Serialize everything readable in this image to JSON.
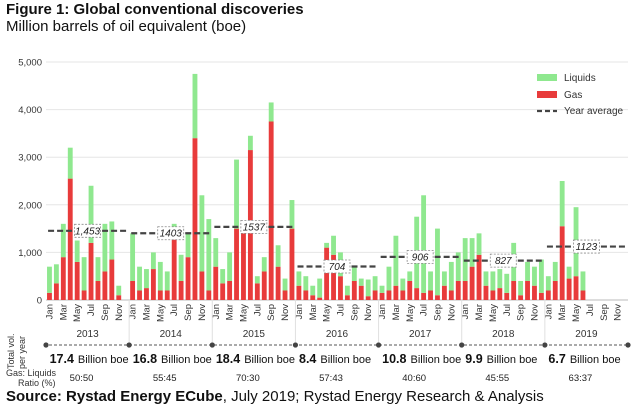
{
  "figure": {
    "title": "Figure 1: Global conventional discoveries",
    "subtitle": "Million barrels of oil equivalent (boe)",
    "source_bold": "Source: Rystad Energy ECube",
    "source_rest": ", July 2019; Rystad Energy Research & Analysis"
  },
  "side_labels": {
    "total_line1": "Total vol.",
    "total_line2": "per year",
    "ratio_line1": "Gas: Liquids",
    "ratio_line2": "Ratio (%)"
  },
  "chart_data": {
    "type": "bar",
    "stacked": true,
    "ylim": [
      0,
      5000
    ],
    "yticks": [
      0,
      1000,
      2000,
      3000,
      4000,
      5000
    ],
    "ytick_labels": [
      "0",
      "1,000",
      "2,000",
      "3,000",
      "4,000",
      "5,000"
    ],
    "month_labels": [
      "Jan",
      "Mar",
      "May",
      "Jul",
      "Sep",
      "Nov"
    ],
    "series": [
      {
        "name": "Liquids",
        "color": "#8fe88f"
      },
      {
        "name": "Gas",
        "color": "#e83b3b"
      }
    ],
    "years": [
      {
        "year": "2013",
        "gas": [
          150,
          350,
          900,
          2550,
          800,
          200,
          1200,
          400,
          600,
          850,
          100,
          0
        ],
        "liquids": [
          550,
          400,
          700,
          650,
          450,
          700,
          1200,
          500,
          1000,
          800,
          200,
          0
        ]
      },
      {
        "year": "2014",
        "gas": [
          400,
          200,
          250,
          650,
          200,
          200,
          1300,
          400,
          900,
          3400,
          600,
          200
        ],
        "liquids": [
          1000,
          500,
          400,
          350,
          600,
          400,
          300,
          550,
          500,
          1350,
          1600,
          1500
        ]
      },
      {
        "year": "2015",
        "gas": [
          700,
          350,
          400,
          1500,
          1400,
          3150,
          350,
          600,
          3750,
          700,
          200,
          1500
        ],
        "liquids": [
          600,
          300,
          600,
          1450,
          200,
          300,
          150,
          300,
          400,
          450,
          250,
          600
        ]
      },
      {
        "year": "2016",
        "gas": [
          300,
          200,
          100,
          50,
          1100,
          950,
          500,
          100,
          400,
          300,
          80,
          200
        ],
        "liquids": [
          300,
          300,
          200,
          400,
          100,
          400,
          500,
          200,
          300,
          150,
          350,
          300
        ]
      },
      {
        "year": "2017",
        "gas": [
          150,
          200,
          300,
          200,
          400,
          250,
          150,
          200,
          100,
          300,
          200,
          400
        ],
        "liquids": [
          150,
          500,
          1050,
          250,
          200,
          1500,
          2050,
          400,
          1400,
          300,
          600,
          600
        ]
      },
      {
        "year": "2018",
        "gas": [
          400,
          700,
          950,
          300,
          200,
          250,
          150,
          400,
          100,
          400,
          300,
          150
        ],
        "liquids": [
          900,
          600,
          450,
          300,
          400,
          400,
          400,
          800,
          300,
          400,
          400,
          700
        ]
      },
      {
        "year": "2019",
        "gas": [
          200,
          400,
          1550,
          450,
          500,
          200,
          0,
          0,
          0,
          0,
          0,
          0
        ],
        "liquids": [
          300,
          400,
          950,
          250,
          1450,
          400,
          0,
          0,
          0,
          0,
          0,
          0
        ]
      }
    ],
    "year_average": {
      "name": "Year average",
      "values": [
        1453,
        1403,
        1537,
        704,
        906,
        827,
        1123
      ],
      "labels": [
        "1,453",
        "1403",
        "1537",
        "704",
        "906",
        "827",
        "1123"
      ]
    },
    "annual_totals": [
      {
        "value": "17.4",
        "unit": "Billion boe",
        "ratio": "50:50"
      },
      {
        "value": "16.8",
        "unit": "Billion boe",
        "ratio": "55:45"
      },
      {
        "value": "18.4",
        "unit": "Billion boe",
        "ratio": "70:30"
      },
      {
        "value": "8.4",
        "unit": "Billion boe",
        "ratio": "57:43"
      },
      {
        "value": "10.8",
        "unit": "Billion boe",
        "ratio": "40:60"
      },
      {
        "value": "9.9",
        "unit": "Billion boe",
        "ratio": "45:55"
      },
      {
        "value": "6.7",
        "unit": "Billion boe",
        "ratio": "63:37"
      }
    ],
    "legend": {
      "position": "top-right"
    }
  }
}
